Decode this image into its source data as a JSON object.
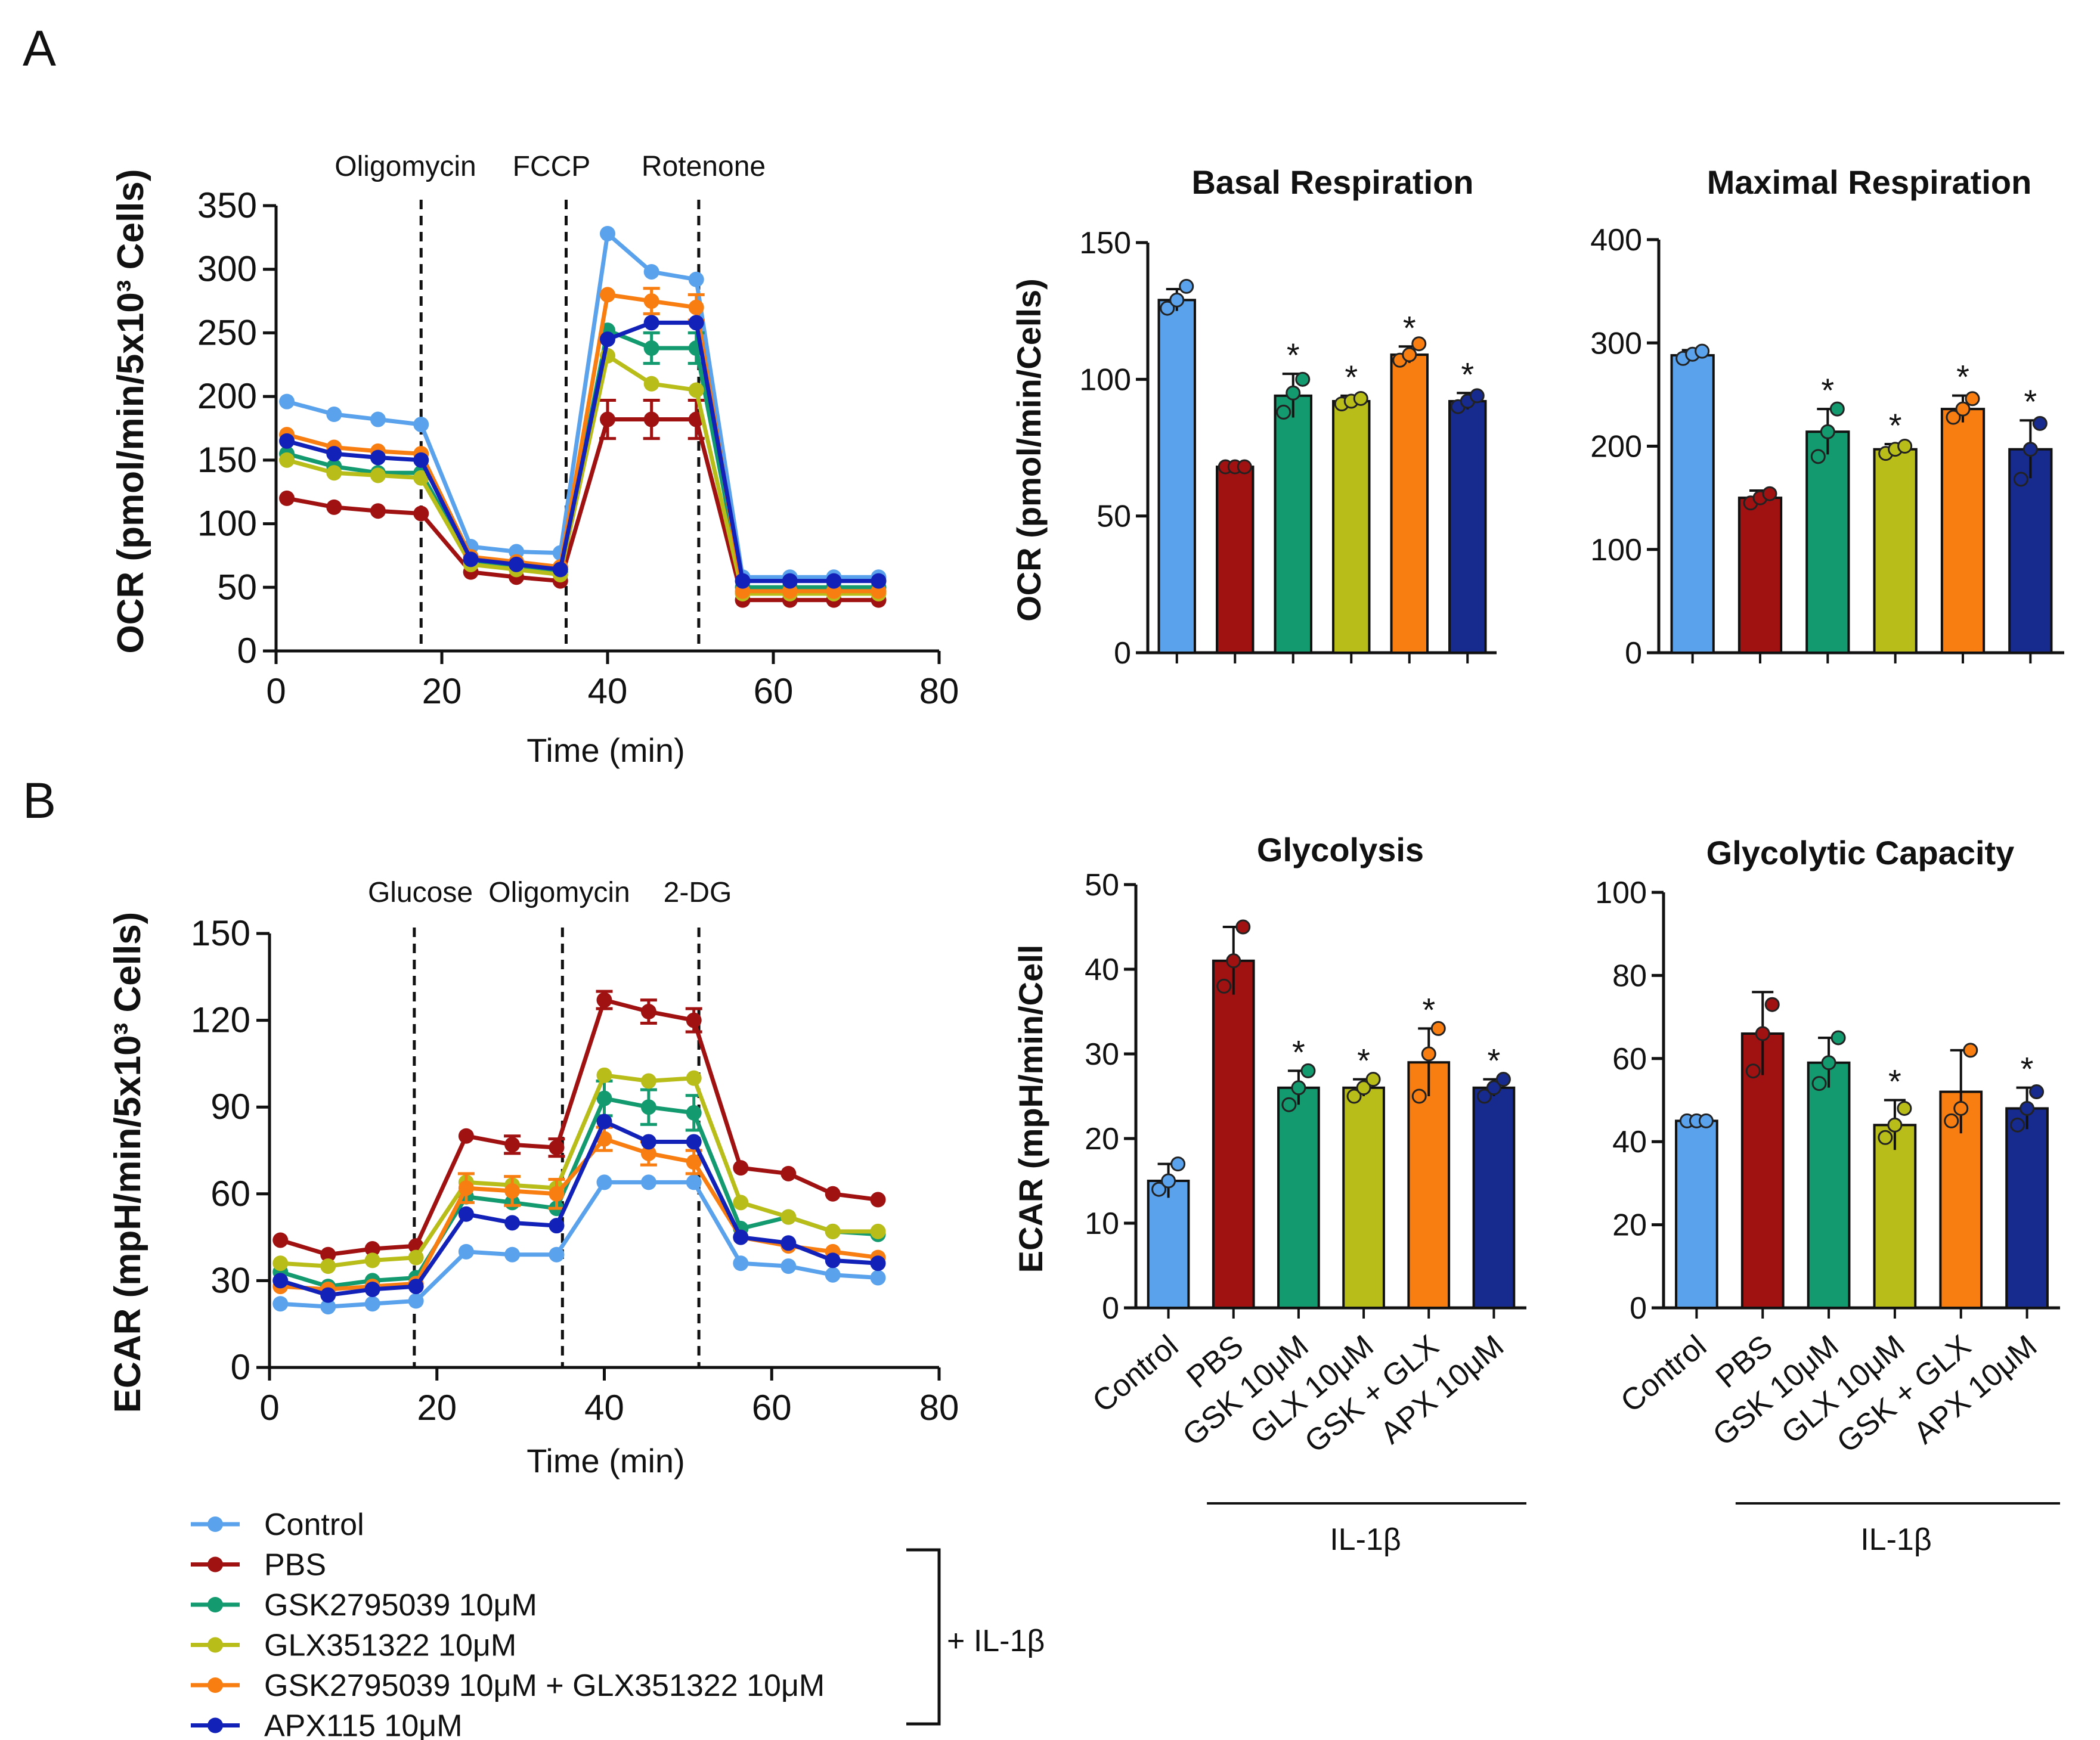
{
  "panels": {
    "A": "A",
    "B": "B"
  },
  "colors": {
    "Control": "#5aa3ec",
    "PBS": "#a01212",
    "GSK": "#139a6f",
    "GLX": "#b9bd1a",
    "GSKGLX": "#f97e12",
    "APX": "#1222b8",
    "APXbar": "#172a8e"
  },
  "legend": {
    "items": [
      {
        "key": "Control",
        "label": "Control"
      },
      {
        "key": "PBS",
        "label": "PBS"
      },
      {
        "key": "GSK",
        "label": "GSK2795039 10μM"
      },
      {
        "key": "GLX",
        "label": "GLX351322 10μM"
      },
      {
        "key": "GSKGLX",
        "label": "GSK2795039 10μM + GLX351322 10μM"
      },
      {
        "key": "APX",
        "label": "APX115 10μM"
      }
    ],
    "bracket_label": "+ IL-1β"
  },
  "chart_data": [
    {
      "id": "ocr_time",
      "type": "line",
      "title": "",
      "xlabel": "Time (min)",
      "ylabel": "OCR (pmol/min/5x10³ Cells)",
      "xlim": [
        0,
        80
      ],
      "ylim": [
        0,
        350
      ],
      "xticks": [
        0,
        20,
        40,
        60,
        80
      ],
      "yticks": [
        0,
        50,
        100,
        150,
        200,
        250,
        300,
        350
      ],
      "injections": [
        {
          "x": 17.5,
          "label": "Oligomycin"
        },
        {
          "x": 35,
          "label": "FCCP"
        },
        {
          "x": 51,
          "label": "Rotenone"
        }
      ],
      "x": [
        1.3,
        7,
        12.3,
        17.5,
        23.5,
        29,
        34.3,
        40,
        45.3,
        50.7,
        56.3,
        62,
        67.3,
        72.7
      ],
      "series": [
        {
          "key": "Control",
          "name": "Control",
          "values": [
            196,
            186,
            182,
            178,
            82,
            78,
            77,
            328,
            298,
            292,
            58,
            58,
            58,
            58
          ],
          "err": [
            0,
            0,
            0,
            0,
            0,
            0,
            0,
            0,
            0,
            0,
            0,
            0,
            0,
            0
          ]
        },
        {
          "key": "PBS",
          "name": "PBS",
          "values": [
            120,
            113,
            110,
            108,
            62,
            58,
            55,
            182,
            182,
            182,
            40,
            40,
            40,
            40
          ],
          "err": [
            0,
            0,
            0,
            0,
            0,
            0,
            0,
            15,
            15,
            15,
            0,
            0,
            0,
            0
          ]
        },
        {
          "key": "GSK",
          "name": "GSK2795039 10μM",
          "values": [
            155,
            145,
            140,
            140,
            70,
            66,
            62,
            252,
            238,
            238,
            50,
            50,
            50,
            50
          ],
          "err": [
            0,
            0,
            0,
            0,
            0,
            0,
            0,
            0,
            12,
            12,
            0,
            0,
            0,
            0
          ]
        },
        {
          "key": "GLX",
          "name": "GLX351322 10μM",
          "values": [
            150,
            140,
            138,
            136,
            68,
            64,
            60,
            232,
            210,
            205,
            45,
            45,
            45,
            45
          ],
          "err": [
            0,
            0,
            0,
            0,
            0,
            0,
            0,
            0,
            0,
            0,
            0,
            0,
            0,
            0
          ]
        },
        {
          "key": "GSKGLX",
          "name": "GSK2795039 10μM + GLX351322 10μM",
          "values": [
            170,
            160,
            157,
            155,
            74,
            70,
            66,
            280,
            275,
            270,
            47,
            47,
            47,
            47
          ],
          "err": [
            0,
            0,
            0,
            0,
            0,
            0,
            0,
            0,
            10,
            10,
            0,
            0,
            0,
            0
          ]
        },
        {
          "key": "APX",
          "name": "APX115 10μM",
          "values": [
            165,
            155,
            152,
            150,
            72,
            68,
            64,
            245,
            258,
            258,
            55,
            55,
            55,
            55
          ],
          "err": [
            0,
            0,
            0,
            0,
            0,
            0,
            0,
            0,
            0,
            0,
            0,
            0,
            0,
            0
          ]
        }
      ]
    },
    {
      "id": "basal",
      "type": "bar",
      "title": "Basal Respiration",
      "xlabel": "",
      "ylabel": "OCR (pmol/min/Cells)",
      "ylim": [
        0,
        150
      ],
      "yticks": [
        0,
        50,
        100,
        150
      ],
      "categories": [
        "Control",
        "PBS",
        "GSK 10μM",
        "GLX 10μM",
        "GSK + GLX",
        "APX 10μM"
      ],
      "keys": [
        "Control",
        "PBS",
        "GSK",
        "GLX",
        "GSKGLX",
        "APXbar"
      ],
      "values": [
        129,
        68,
        94,
        92,
        109,
        92
      ],
      "err": [
        4,
        1,
        8,
        2,
        3,
        3
      ],
      "points": [
        [
          126,
          129,
          134
        ],
        [
          68,
          68,
          68
        ],
        [
          88,
          95,
          100
        ],
        [
          91,
          92,
          93
        ],
        [
          107,
          109,
          113
        ],
        [
          90,
          92,
          94
        ]
      ],
      "significant": [
        false,
        false,
        true,
        true,
        true,
        true
      ],
      "star": "*"
    },
    {
      "id": "maximal",
      "type": "bar",
      "title": "Maximal Respiration",
      "xlabel": "",
      "ylabel": "",
      "ylim": [
        0,
        400
      ],
      "yticks": [
        0,
        100,
        200,
        300,
        400
      ],
      "categories": [
        "Control",
        "PBS",
        "GSK 10μM",
        "GLX 10μM",
        "GSK + GLX",
        "APX 10μM"
      ],
      "keys": [
        "Control",
        "PBS",
        "GSK",
        "GLX",
        "GSKGLX",
        "APXbar"
      ],
      "values": [
        288,
        150,
        214,
        197,
        236,
        197
      ],
      "err": [
        5,
        7,
        22,
        5,
        13,
        28
      ],
      "points": [
        [
          285,
          289,
          292
        ],
        [
          145,
          150,
          154
        ],
        [
          190,
          214,
          236
        ],
        [
          193,
          197,
          200
        ],
        [
          228,
          236,
          246
        ],
        [
          168,
          197,
          222
        ]
      ],
      "significant": [
        false,
        false,
        true,
        true,
        true,
        true
      ],
      "star": "*"
    },
    {
      "id": "ecar_time",
      "type": "line",
      "title": "",
      "xlabel": "Time (min)",
      "ylabel": "ECAR (mpH/min/5x10³ Cells)",
      "xlim": [
        0,
        80
      ],
      "ylim": [
        0,
        150
      ],
      "xticks": [
        0,
        20,
        40,
        60,
        80
      ],
      "yticks": [
        0,
        30,
        60,
        90,
        120,
        150
      ],
      "injections": [
        {
          "x": 17.3,
          "label": "Glucose"
        },
        {
          "x": 35,
          "label": "Oligomycin"
        },
        {
          "x": 51.3,
          "label": "2-DG"
        }
      ],
      "x": [
        1.3,
        7,
        12.3,
        17.5,
        23.5,
        29,
        34.3,
        40,
        45.3,
        50.7,
        56.3,
        62,
        67.3,
        72.7
      ],
      "series": [
        {
          "key": "Control",
          "name": "Control",
          "values": [
            22,
            21,
            22,
            23,
            40,
            39,
            39,
            64,
            64,
            64,
            36,
            35,
            32,
            31
          ],
          "err": [
            0,
            0,
            0,
            0,
            0,
            0,
            0,
            0,
            0,
            0,
            0,
            0,
            0,
            0
          ]
        },
        {
          "key": "PBS",
          "name": "PBS",
          "values": [
            44,
            39,
            41,
            42,
            80,
            77,
            76,
            127,
            123,
            120,
            69,
            67,
            60,
            58
          ],
          "err": [
            0,
            0,
            0,
            0,
            0,
            3,
            3,
            3,
            4,
            4,
            0,
            0,
            0,
            0
          ]
        },
        {
          "key": "GSK",
          "name": "GSK2795039 10μM",
          "values": [
            33,
            28,
            30,
            31,
            59,
            57,
            55,
            93,
            90,
            88,
            48,
            52,
            47,
            46
          ],
          "err": [
            0,
            0,
            0,
            0,
            0,
            0,
            0,
            6,
            6,
            6,
            0,
            0,
            0,
            0
          ]
        },
        {
          "key": "GLX",
          "name": "GLX351322 10μM",
          "values": [
            36,
            35,
            37,
            38,
            64,
            63,
            62,
            101,
            99,
            100,
            57,
            52,
            47,
            47
          ],
          "err": [
            0,
            0,
            0,
            0,
            0,
            0,
            0,
            0,
            0,
            0,
            0,
            0,
            0,
            0
          ]
        },
        {
          "key": "GSKGLX",
          "name": "GSK2795039 10μM + GLX351322 10μM",
          "values": [
            28,
            27,
            28,
            29,
            62,
            61,
            60,
            79,
            74,
            71,
            45,
            42,
            40,
            38
          ],
          "err": [
            0,
            0,
            0,
            0,
            5,
            5,
            5,
            4,
            4,
            4,
            0,
            0,
            0,
            0
          ]
        },
        {
          "key": "APX",
          "name": "APX115 10μM",
          "values": [
            30,
            25,
            27,
            28,
            53,
            50,
            49,
            85,
            78,
            78,
            45,
            43,
            37,
            36
          ],
          "err": [
            0,
            0,
            0,
            0,
            0,
            0,
            0,
            0,
            0,
            0,
            0,
            0,
            0,
            0
          ]
        }
      ]
    },
    {
      "id": "glycolysis",
      "type": "bar",
      "title": "Glycolysis",
      "xlabel": "",
      "ylabel": "ECAR (mpH/min/Cell",
      "ylim": [
        0,
        50
      ],
      "yticks": [
        0,
        10,
        20,
        30,
        40,
        50
      ],
      "categories": [
        "Control",
        "PBS",
        "GSK 10μM",
        "GLX 10μM",
        "GSK + GLX",
        "APX 10μM"
      ],
      "keys": [
        "Control",
        "PBS",
        "GSK",
        "GLX",
        "GSKGLX",
        "APXbar"
      ],
      "values": [
        15,
        41,
        26,
        26,
        29,
        26
      ],
      "err": [
        2,
        4,
        2,
        1,
        4,
        1
      ],
      "points": [
        [
          14,
          15,
          17
        ],
        [
          38,
          41,
          45
        ],
        [
          24,
          26,
          28
        ],
        [
          25,
          26,
          27
        ],
        [
          25,
          30,
          33
        ],
        [
          25,
          26,
          27
        ]
      ],
      "significant": [
        false,
        false,
        true,
        true,
        true,
        true
      ],
      "star": "*",
      "group_label": "IL-1β"
    },
    {
      "id": "glycolytic_capacity",
      "type": "bar",
      "title": "Glycolytic Capacity",
      "xlabel": "",
      "ylabel": "",
      "ylim": [
        0,
        100
      ],
      "yticks": [
        0,
        20,
        40,
        60,
        80,
        100
      ],
      "categories": [
        "Control",
        "PBS",
        "GSK 10μM",
        "GLX 10μM",
        "GSK + GLX",
        "APX 10μM"
      ],
      "keys": [
        "Control",
        "PBS",
        "GSK",
        "GLX",
        "GSKGLX",
        "APXbar"
      ],
      "values": [
        45,
        66,
        59,
        44,
        52,
        48
      ],
      "err": [
        1,
        10,
        6,
        6,
        10,
        5
      ],
      "points": [
        [
          45,
          45,
          45
        ],
        [
          57,
          66,
          73
        ],
        [
          54,
          59,
          65
        ],
        [
          41,
          44,
          48
        ],
        [
          45,
          48,
          62
        ],
        [
          44,
          48,
          52
        ]
      ],
      "significant": [
        false,
        false,
        false,
        true,
        false,
        true
      ],
      "star": "*",
      "group_label": "IL-1β"
    }
  ]
}
